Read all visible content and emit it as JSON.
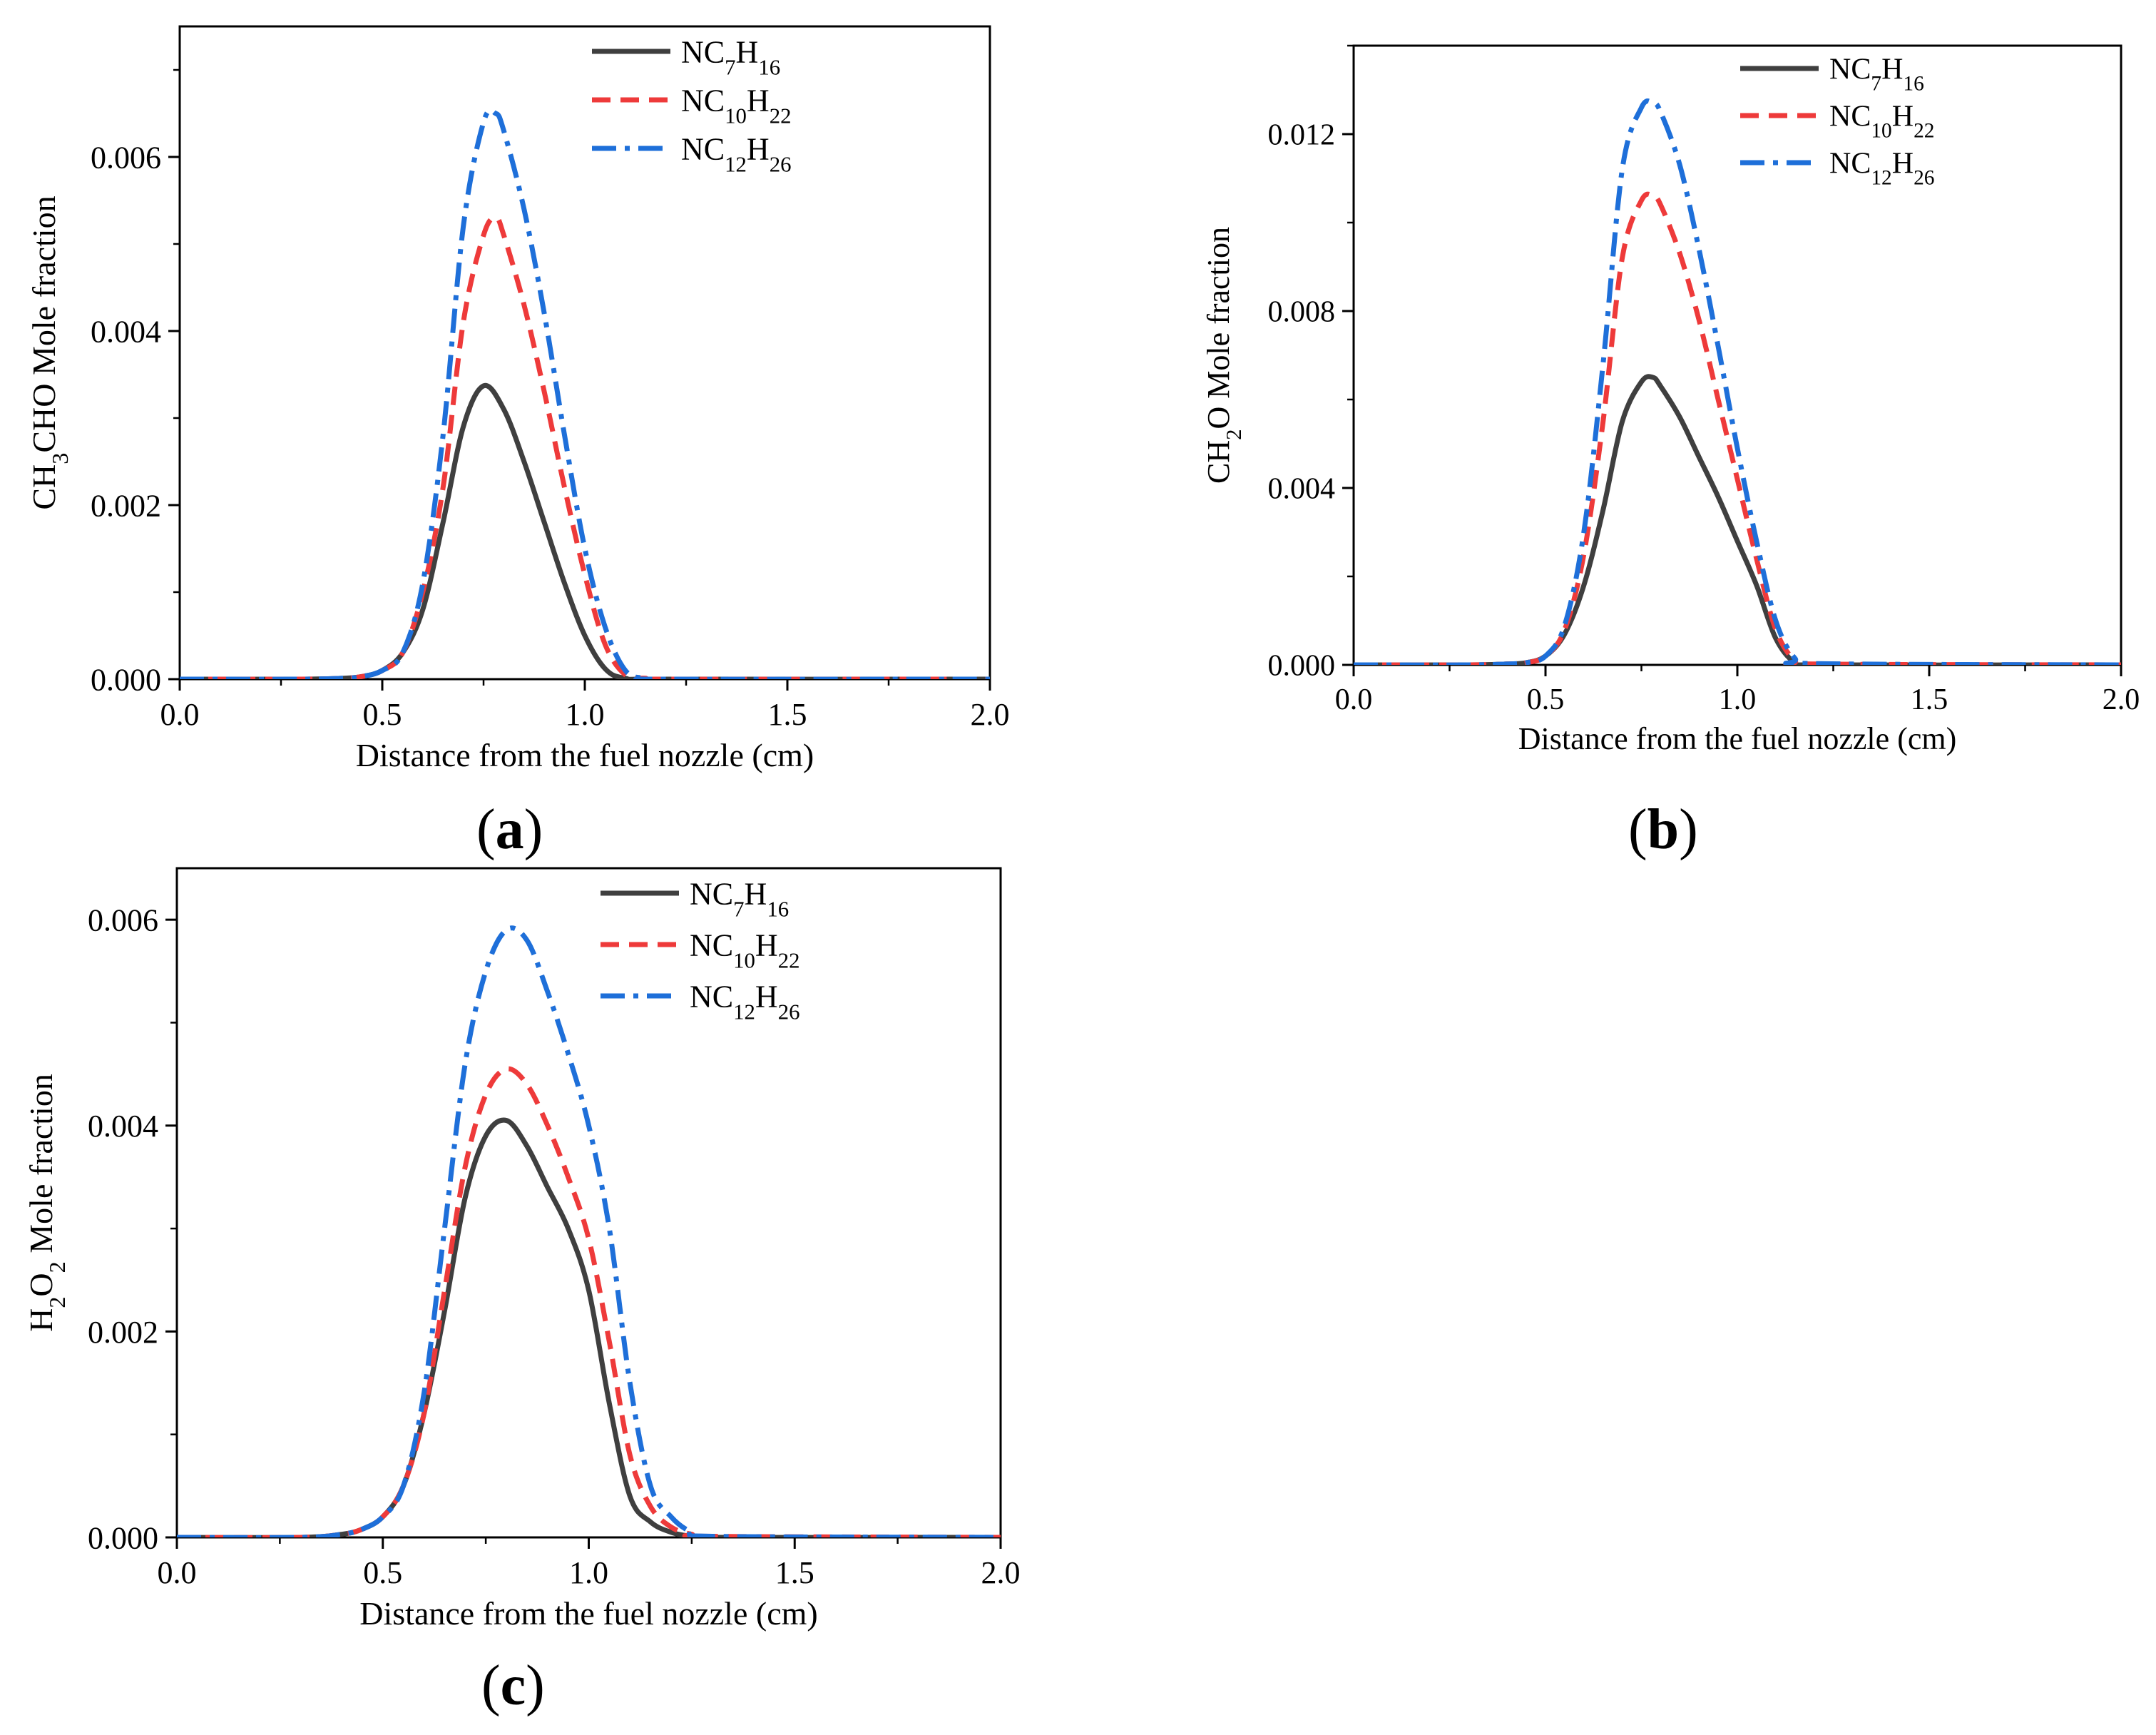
{
  "figure": {
    "panels": [
      {
        "paren_open": "(",
        "letter": "a",
        "paren_close": ")"
      },
      {
        "paren_open": "(",
        "letter": "b",
        "paren_close": ")"
      },
      {
        "paren_open": "(",
        "letter": "c",
        "paren_close": ")"
      }
    ]
  },
  "chart_data": [
    {
      "type": "line",
      "panel": "a",
      "title": "",
      "xlabel": "Distance from the fuel nozzle (cm)",
      "ylabel": {
        "pre": "CH",
        "sub": "3",
        "post": "CHO Mole fraction"
      },
      "xlim": [
        0,
        2.0
      ],
      "ylim": [
        0,
        0.0075
      ],
      "xticks": [
        "0.0",
        "0.5",
        "1.0",
        "1.5",
        "2.0"
      ],
      "yticks": [
        "0.000",
        "0.002",
        "0.004",
        "0.006"
      ],
      "ytick_values": [
        0,
        0.002,
        0.004,
        0.006
      ],
      "legend_position": "top-right",
      "series": [
        {
          "name": "NC7H16",
          "label": {
            "a": "NC",
            "b": "7",
            "c": "H",
            "d": "16"
          },
          "color": "#3f3f3f",
          "style": "solid",
          "x": [
            0,
            0.3,
            0.4,
            0.45,
            0.5,
            0.55,
            0.6,
            0.65,
            0.7,
            0.75,
            0.8,
            0.85,
            0.9,
            0.95,
            1.0,
            1.05,
            1.1,
            1.2,
            2.0
          ],
          "y": [
            0,
            0,
            1e-05,
            3e-05,
            0.0001,
            0.0003,
            0.0008,
            0.0018,
            0.0029,
            0.00337,
            0.0031,
            0.0025,
            0.0018,
            0.0011,
            0.0005,
            0.00012,
            1e-05,
            0,
            0
          ]
        },
        {
          "name": "NC10H22",
          "label": {
            "a": "NC",
            "b": "10",
            "c": "H",
            "d": "22"
          },
          "color": "#ee3a3a",
          "style": "dash",
          "x": [
            0,
            0.3,
            0.4,
            0.45,
            0.5,
            0.55,
            0.6,
            0.65,
            0.7,
            0.75,
            0.78,
            0.8,
            0.85,
            0.9,
            0.95,
            1.0,
            1.05,
            1.1,
            1.15,
            1.2,
            2.0
          ],
          "y": [
            0,
            0,
            1e-05,
            3e-05,
            0.0001,
            0.0003,
            0.001,
            0.0022,
            0.0041,
            0.0051,
            0.0053,
            0.0051,
            0.0043,
            0.0033,
            0.0022,
            0.0012,
            0.0004,
            5e-05,
            1e-05,
            0,
            0
          ]
        },
        {
          "name": "NC12H26",
          "label": {
            "a": "NC",
            "b": "12",
            "c": "H",
            "d": "26"
          },
          "color": "#1e6fd9",
          "style": "dashdot",
          "x": [
            0,
            0.3,
            0.4,
            0.45,
            0.5,
            0.55,
            0.6,
            0.65,
            0.7,
            0.75,
            0.78,
            0.8,
            0.85,
            0.9,
            0.95,
            1.0,
            1.05,
            1.1,
            1.15,
            1.2,
            2.0
          ],
          "y": [
            0,
            0,
            1e-05,
            3e-05,
            0.0001,
            0.0003,
            0.0011,
            0.0028,
            0.0052,
            0.0064,
            0.0065,
            0.0063,
            0.0054,
            0.0042,
            0.0028,
            0.0015,
            0.0006,
            0.0001,
            1e-05,
            0,
            0
          ]
        }
      ]
    },
    {
      "type": "line",
      "panel": "b",
      "title": "",
      "xlabel": "Distance from the fuel nozzle (cm)",
      "ylabel": {
        "pre": "CH",
        "sub": "2",
        "post": "O Mole fraction"
      },
      "xlim": [
        0,
        2.0
      ],
      "ylim": [
        0,
        0.014
      ],
      "xticks": [
        "0.0",
        "0.5",
        "1.0",
        "1.5",
        "2.0"
      ],
      "yticks": [
        "0.000",
        "0.004",
        "0.008",
        "0.012"
      ],
      "ytick_values": [
        0,
        0.004,
        0.008,
        0.012
      ],
      "legend_position": "top-right",
      "series": [
        {
          "name": "NC7H16",
          "label": {
            "a": "NC",
            "b": "7",
            "c": "H",
            "d": "16"
          },
          "color": "#3f3f3f",
          "style": "solid",
          "x": [
            0,
            0.3,
            0.4,
            0.45,
            0.5,
            0.55,
            0.6,
            0.65,
            0.7,
            0.75,
            0.78,
            0.8,
            0.85,
            0.9,
            0.95,
            1.0,
            1.05,
            1.1,
            1.15,
            1.2,
            2.0
          ],
          "y": [
            0,
            0,
            2e-05,
            5e-05,
            0.0002,
            0.0007,
            0.0018,
            0.0035,
            0.0055,
            0.0064,
            0.0065,
            0.0063,
            0.0056,
            0.0047,
            0.0038,
            0.0028,
            0.0018,
            0.0006,
            5e-05,
            0,
            0
          ]
        },
        {
          "name": "NC10H22",
          "label": {
            "a": "NC",
            "b": "10",
            "c": "H",
            "d": "22"
          },
          "color": "#ee3a3a",
          "style": "dash",
          "x": [
            0,
            0.3,
            0.4,
            0.45,
            0.5,
            0.55,
            0.6,
            0.65,
            0.7,
            0.75,
            0.78,
            0.8,
            0.85,
            0.9,
            0.95,
            1.0,
            1.05,
            1.1,
            1.15,
            1.2,
            2.0
          ],
          "y": [
            0,
            0,
            2e-05,
            5e-05,
            0.0002,
            0.0008,
            0.0025,
            0.0055,
            0.0092,
            0.0105,
            0.0106,
            0.0104,
            0.0093,
            0.0078,
            0.006,
            0.0042,
            0.0024,
            0.0008,
            0.0001,
            2e-05,
            0
          ]
        },
        {
          "name": "NC12H26",
          "label": {
            "a": "NC",
            "b": "12",
            "c": "H",
            "d": "26"
          },
          "color": "#1e6fd9",
          "style": "dashdot",
          "x": [
            0,
            0.3,
            0.4,
            0.45,
            0.5,
            0.55,
            0.6,
            0.65,
            0.7,
            0.75,
            0.78,
            0.8,
            0.85,
            0.9,
            0.95,
            1.0,
            1.05,
            1.1,
            1.15,
            1.2,
            2.0
          ],
          "y": [
            0,
            0,
            2e-05,
            5e-05,
            0.0002,
            0.0009,
            0.003,
            0.0068,
            0.0112,
            0.0126,
            0.0127,
            0.0125,
            0.0113,
            0.0094,
            0.0072,
            0.0049,
            0.0028,
            0.001,
            0.00015,
            3e-05,
            0
          ]
        }
      ]
    },
    {
      "type": "line",
      "panel": "c",
      "title": "",
      "xlabel": "Distance from the fuel nozzle (cm)",
      "ylabel": {
        "pre": "H",
        "sub": "2",
        "post": "O",
        "sub2": "2",
        "post2": " Mole fraction"
      },
      "xlim": [
        0,
        2.0
      ],
      "ylim": [
        0,
        0.0065
      ],
      "xticks": [
        "0.0",
        "0.5",
        "1.0",
        "1.5",
        "2.0"
      ],
      "yticks": [
        "0.000",
        "0.002",
        "0.004",
        "0.006"
      ],
      "ytick_values": [
        0,
        0.002,
        0.004,
        0.006
      ],
      "legend_position": "top-right",
      "series": [
        {
          "name": "NC7H16",
          "label": {
            "a": "NC",
            "b": "7",
            "c": "H",
            "d": "16"
          },
          "color": "#3f3f3f",
          "style": "solid",
          "x": [
            0,
            0.3,
            0.4,
            0.45,
            0.5,
            0.55,
            0.6,
            0.65,
            0.7,
            0.75,
            0.8,
            0.85,
            0.9,
            0.95,
            1.0,
            1.05,
            1.1,
            1.15,
            1.2,
            1.25,
            1.3,
            2.0
          ],
          "y": [
            0,
            0,
            3e-05,
            8e-05,
            0.0002,
            0.0005,
            0.0012,
            0.0022,
            0.0033,
            0.0039,
            0.00405,
            0.0038,
            0.0034,
            0.003,
            0.0024,
            0.0013,
            0.0004,
            0.00015,
            5e-05,
            1e-05,
            0,
            0
          ]
        },
        {
          "name": "NC10H22",
          "label": {
            "a": "NC",
            "b": "10",
            "c": "H",
            "d": "22"
          },
          "color": "#ee3a3a",
          "style": "dash",
          "x": [
            0,
            0.3,
            0.4,
            0.45,
            0.5,
            0.55,
            0.6,
            0.65,
            0.7,
            0.75,
            0.8,
            0.85,
            0.9,
            0.95,
            1.0,
            1.05,
            1.1,
            1.15,
            1.2,
            1.25,
            1.3,
            2.0
          ],
          "y": [
            0,
            0,
            3e-05,
            8e-05,
            0.0002,
            0.0005,
            0.0012,
            0.0024,
            0.0036,
            0.0043,
            0.00455,
            0.0044,
            0.004,
            0.0035,
            0.0029,
            0.0019,
            0.0008,
            0.0003,
            0.0001,
            3e-05,
            1e-05,
            0
          ]
        },
        {
          "name": "NC12H26",
          "label": {
            "a": "NC",
            "b": "12",
            "c": "H",
            "d": "26"
          },
          "color": "#1e6fd9",
          "style": "dashdot",
          "x": [
            0,
            0.3,
            0.4,
            0.45,
            0.5,
            0.55,
            0.6,
            0.65,
            0.7,
            0.75,
            0.8,
            0.85,
            0.9,
            0.95,
            1.0,
            1.05,
            1.1,
            1.15,
            1.2,
            1.25,
            1.3,
            2.0
          ],
          "y": [
            0,
            0,
            3e-05,
            8e-05,
            0.0002,
            0.0005,
            0.0014,
            0.003,
            0.0046,
            0.0055,
            0.0059,
            0.0058,
            0.0053,
            0.0047,
            0.004,
            0.003,
            0.0015,
            0.0005,
            0.0002,
            5e-05,
            1e-05,
            0
          ]
        }
      ]
    }
  ]
}
